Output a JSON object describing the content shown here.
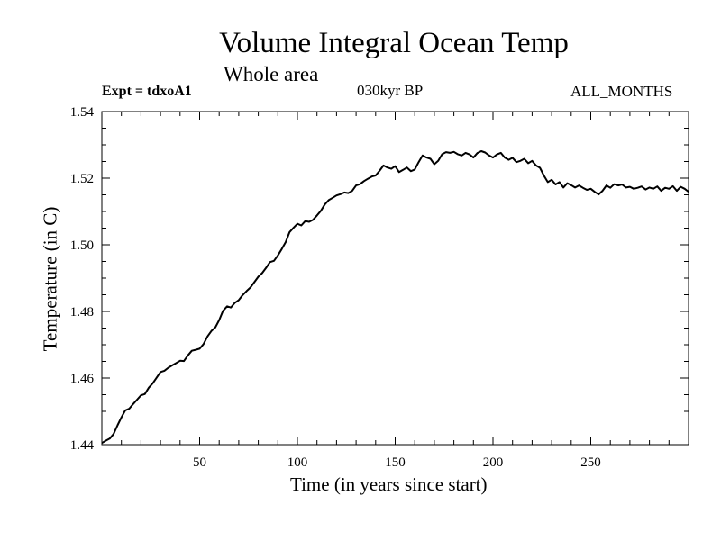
{
  "chart_data": {
    "type": "line",
    "title": "Volume Integral Ocean Temp",
    "subtitle": "Whole area",
    "expt_label": "Expt = tdxoA1",
    "period_label": "030kyr BP",
    "months_label": "ALL_MONTHS",
    "xlabel": "Time (in years since start)",
    "ylabel": "Temperature (in C)",
    "xlim": [
      0,
      300
    ],
    "ylim": [
      1.44,
      1.54
    ],
    "xticks": [
      50,
      100,
      150,
      200,
      250
    ],
    "xtick_labels": [
      "50",
      "100",
      "150",
      "200",
      "250"
    ],
    "yticks": [
      1.44,
      1.46,
      1.48,
      1.5,
      1.52,
      1.54
    ],
    "ytick_labels": [
      "1.44",
      "1.46",
      "1.48",
      "1.50",
      "1.52",
      "1.54"
    ],
    "grid": false,
    "series": [
      {
        "name": "Temperature",
        "color": "#000000",
        "x": [
          0,
          2,
          4,
          6,
          8,
          10,
          12,
          14,
          16,
          18,
          20,
          22,
          24,
          26,
          28,
          30,
          32,
          34,
          36,
          38,
          40,
          42,
          44,
          46,
          48,
          50,
          52,
          54,
          56,
          58,
          60,
          62,
          64,
          66,
          68,
          70,
          72,
          74,
          76,
          78,
          80,
          82,
          84,
          86,
          88,
          90,
          92,
          94,
          96,
          98,
          100,
          102,
          104,
          106,
          108,
          110,
          112,
          114,
          116,
          118,
          120,
          122,
          124,
          126,
          128,
          130,
          132,
          134,
          136,
          138,
          140,
          142,
          144,
          146,
          148,
          150,
          152,
          154,
          156,
          158,
          160,
          162,
          164,
          166,
          168,
          170,
          172,
          174,
          176,
          178,
          180,
          182,
          184,
          186,
          188,
          190,
          192,
          194,
          196,
          198,
          200,
          202,
          204,
          206,
          208,
          210,
          212,
          214,
          216,
          218,
          220,
          222,
          224,
          226,
          228,
          230,
          232,
          234,
          236,
          238,
          240,
          242,
          244,
          246,
          248,
          250,
          252,
          254,
          256,
          258,
          260,
          262,
          264,
          266,
          268,
          270,
          272,
          274,
          276,
          278,
          280,
          282,
          284,
          286,
          288,
          290,
          292,
          294,
          296,
          298,
          300
        ],
        "y": [
          1.4405,
          1.4412,
          1.4418,
          1.4432,
          1.4458,
          1.4482,
          1.4503,
          1.4508,
          1.4522,
          1.4535,
          1.4548,
          1.4552,
          1.4571,
          1.4584,
          1.4601,
          1.4618,
          1.4622,
          1.4631,
          1.4638,
          1.4645,
          1.4652,
          1.4651,
          1.4668,
          1.4682,
          1.4685,
          1.4688,
          1.4702,
          1.4725,
          1.4741,
          1.4752,
          1.4774,
          1.4802,
          1.4815,
          1.4812,
          1.4826,
          1.4834,
          1.4849,
          1.4861,
          1.4872,
          1.4888,
          1.4904,
          1.4915,
          1.4931,
          1.4948,
          1.4952,
          1.4968,
          1.4987,
          1.5008,
          1.5038,
          1.5051,
          1.5063,
          1.5058,
          1.5071,
          1.5069,
          1.5075,
          1.5088,
          1.5102,
          1.5121,
          1.5134,
          1.5141,
          1.5148,
          1.5152,
          1.5157,
          1.5155,
          1.5162,
          1.5178,
          1.5182,
          1.5191,
          1.5198,
          1.5205,
          1.5208,
          1.5222,
          1.5238,
          1.5232,
          1.5228,
          1.5236,
          1.5218,
          1.5225,
          1.5232,
          1.5221,
          1.5226,
          1.5248,
          1.5268,
          1.5262,
          1.5258,
          1.5242,
          1.5252,
          1.5272,
          1.5278,
          1.5276,
          1.5279,
          1.5272,
          1.5268,
          1.5276,
          1.5271,
          1.5262,
          1.5275,
          1.5281,
          1.5277,
          1.5268,
          1.5262,
          1.5271,
          1.5276,
          1.5262,
          1.5255,
          1.5261,
          1.5248,
          1.5252,
          1.5258,
          1.5245,
          1.5252,
          1.5238,
          1.5231,
          1.5208,
          1.5188,
          1.5195,
          1.5181,
          1.5188,
          1.5172,
          1.5185,
          1.5179,
          1.5172,
          1.5178,
          1.5171,
          1.5165,
          1.5168,
          1.5159,
          1.5151,
          1.5162,
          1.5178,
          1.5171,
          1.5182,
          1.5178,
          1.5181,
          1.5172,
          1.5174,
          1.5168,
          1.5171,
          1.5175,
          1.5166,
          1.5172,
          1.5168,
          1.5175,
          1.5162,
          1.5171,
          1.5168,
          1.5176,
          1.5162,
          1.5174,
          1.5168,
          1.5159
        ]
      }
    ]
  }
}
